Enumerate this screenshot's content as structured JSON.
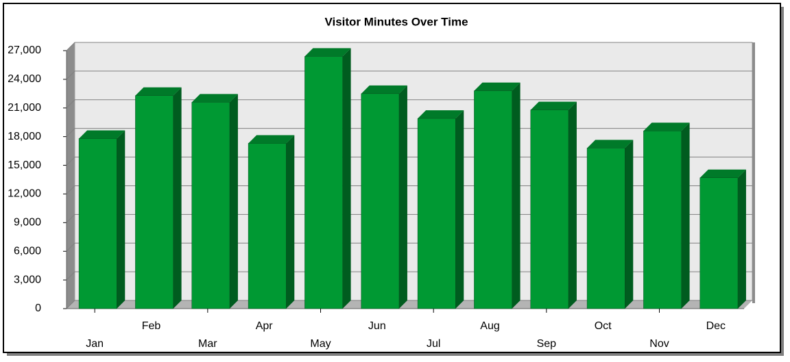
{
  "chart_data": {
    "type": "bar3d",
    "title": "Visitor Minutes Over Time",
    "categories": [
      "Jan",
      "Feb",
      "Mar",
      "Apr",
      "May",
      "Jun",
      "Jul",
      "Aug",
      "Sep",
      "Oct",
      "Nov",
      "Dec"
    ],
    "values": [
      17800,
      22300,
      21600,
      17300,
      26400,
      22500,
      19900,
      22800,
      20800,
      16800,
      18600,
      13700
    ],
    "color": "#009933",
    "ylim": [
      0,
      27000
    ],
    "yticks": [
      0,
      {
        "value": 3000,
        "label": "3,000"
      },
      {
        "value": 6000,
        "label": "6,000"
      },
      {
        "value": 9000,
        "label": "9,000"
      },
      {
        "value": 12000,
        "label": "12,000"
      },
      {
        "value": 15000,
        "label": "15,000"
      },
      {
        "value": 18000,
        "label": "18,000"
      },
      {
        "value": 21000,
        "label": "21,000"
      },
      {
        "value": 24000,
        "label": "24,000"
      },
      {
        "value": 27000,
        "label": "27,000"
      }
    ],
    "grid": true
  }
}
